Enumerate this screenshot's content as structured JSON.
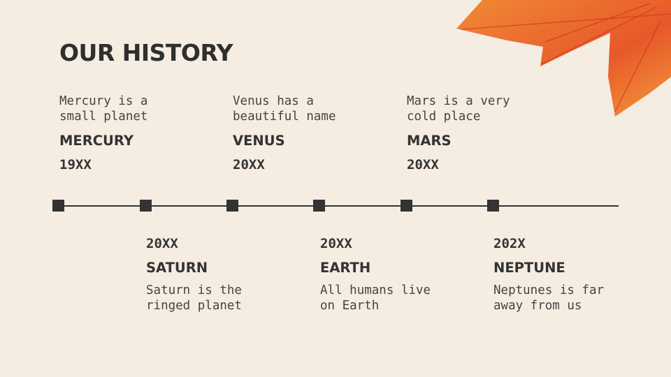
{
  "title": "OUR HISTORY",
  "top_items": [
    {
      "desc": "Mercury is a\nsmall planet",
      "name": "MERCURY",
      "year": "19XX"
    },
    {
      "desc": "Venus has a\nbeautiful name",
      "name": "VENUS",
      "year": "20XX"
    },
    {
      "desc": "Mars is a very\ncold place",
      "name": "MARS",
      "year": "20XX"
    }
  ],
  "bottom_items": [
    {
      "year": "20XX",
      "name": "SATURN",
      "desc": "Saturn is the\nringed planet"
    },
    {
      "year": "20XX",
      "name": "EARTH",
      "desc": "All humans live\non Earth"
    },
    {
      "year": "202X",
      "name": "NEPTUNE",
      "desc": "Neptunes is far\naway from us"
    }
  ],
  "colors": {
    "background": "#f5ede2",
    "text": "#333333",
    "leaf": "#ec6a2c"
  }
}
